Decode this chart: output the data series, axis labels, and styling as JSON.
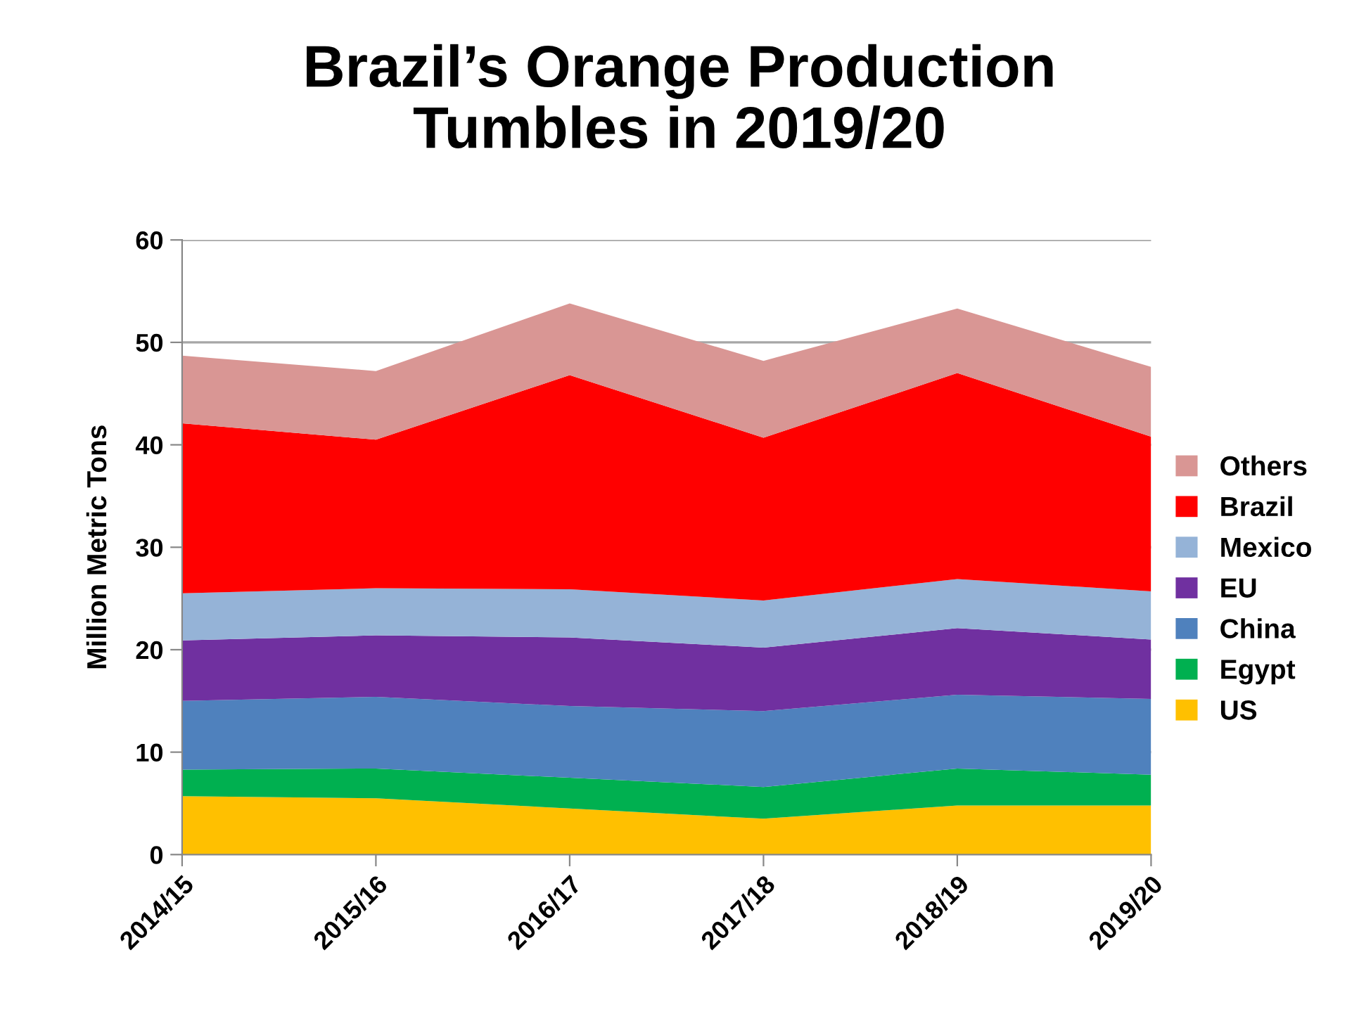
{
  "chart_data": {
    "type": "area",
    "stacked": true,
    "title": "Brazil’s Orange Production\nTumbles in 2019/20",
    "ylabel": "Million Metric Tons",
    "categories": [
      "2014/15",
      "2015/16",
      "2016/17",
      "2017/18",
      "2018/19",
      "2019/20"
    ],
    "series": [
      {
        "name": "US",
        "color": "#ffc000",
        "values": [
          5.7,
          5.5,
          4.5,
          3.5,
          4.8,
          4.8
        ]
      },
      {
        "name": "Egypt",
        "color": "#00b050",
        "values": [
          2.6,
          2.9,
          3.0,
          3.1,
          3.6,
          3.0
        ]
      },
      {
        "name": "China",
        "color": "#4f81bd",
        "values": [
          6.7,
          7.0,
          7.0,
          7.4,
          7.2,
          7.4
        ]
      },
      {
        "name": "EU",
        "color": "#7030a0",
        "values": [
          5.9,
          6.0,
          6.7,
          6.2,
          6.5,
          5.8
        ]
      },
      {
        "name": "Mexico",
        "color": "#95b3d7",
        "values": [
          4.6,
          4.6,
          4.7,
          4.6,
          4.8,
          4.7
        ]
      },
      {
        "name": "Brazil",
        "color": "#ff0000",
        "values": [
          16.6,
          14.5,
          20.9,
          15.9,
          20.1,
          15.1
        ]
      },
      {
        "name": "Others",
        "color": "#d99694",
        "values": [
          6.6,
          6.7,
          7.0,
          7.5,
          6.3,
          6.8
        ]
      }
    ],
    "ylim": [
      0,
      60
    ],
    "yticks": [
      0,
      10,
      20,
      30,
      40,
      50,
      60
    ],
    "grid": "y",
    "legend": "right"
  }
}
